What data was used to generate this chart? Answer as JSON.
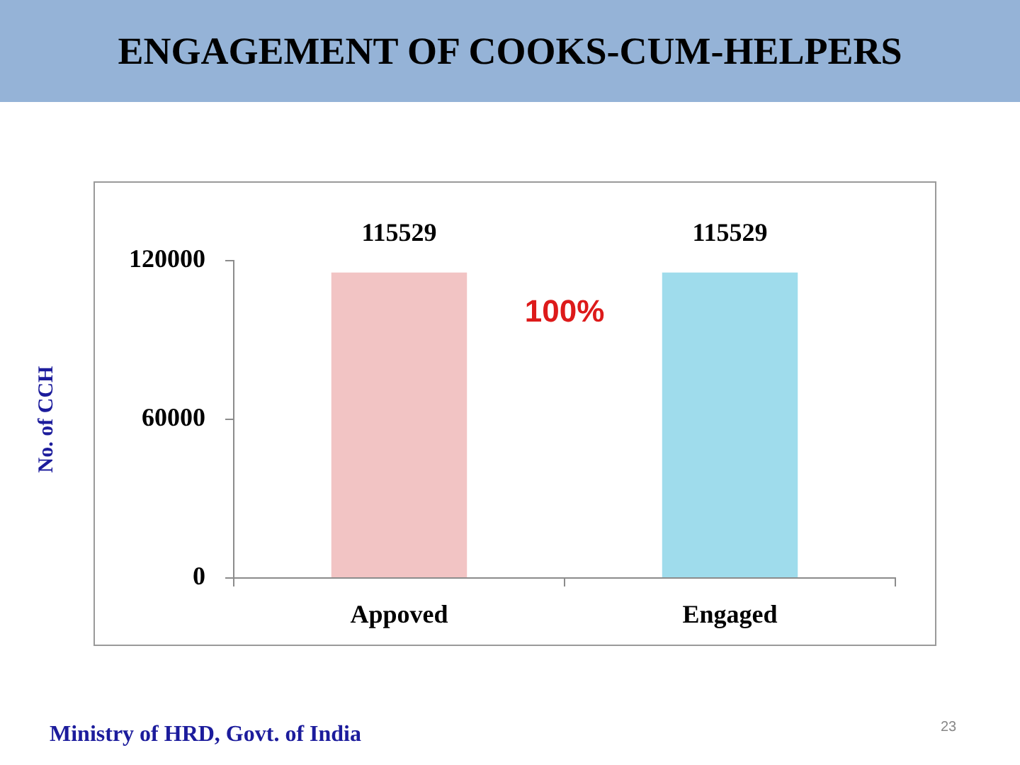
{
  "chart_data": {
    "type": "bar",
    "title": "ENGAGEMENT OF COOKS-CUM-HELPERS",
    "ylabel": "No. of CCH",
    "categories": [
      "Appoved",
      "Engaged"
    ],
    "values": [
      115529,
      115529
    ],
    "colors": [
      "#f2c4c4",
      "#9fdcec"
    ],
    "ylim": [
      0,
      120000
    ],
    "yticks": [
      0,
      60000,
      120000
    ],
    "grid": false,
    "legend": false,
    "data_labels": true,
    "annotations": [
      "100%",
      "Ministry of HRD, Govt. of India",
      "23"
    ]
  }
}
